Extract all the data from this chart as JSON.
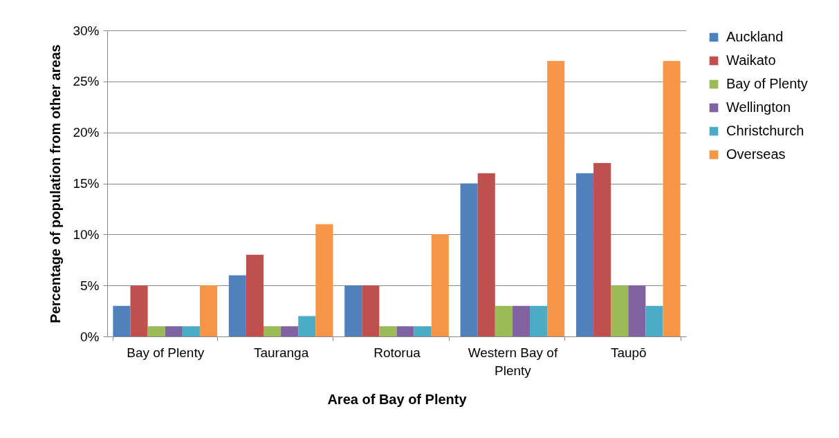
{
  "chart_data": {
    "type": "bar",
    "xlabel": "Area of Bay of Plenty",
    "ylabel": "Percentage of population from other areas",
    "categories": [
      "Bay of Plenty",
      "Tauranga",
      "Rotorua",
      "Western Bay of Plenty",
      "Taupō"
    ],
    "series": [
      {
        "name": "Auckland",
        "color": "#4f81bd",
        "values": [
          3,
          6,
          5,
          15,
          16
        ]
      },
      {
        "name": "Waikato",
        "color": "#c0504d",
        "values": [
          5,
          8,
          5,
          16,
          17
        ]
      },
      {
        "name": "Bay of Plenty",
        "color": "#9bbb59",
        "values": [
          1,
          1,
          1,
          3,
          5
        ]
      },
      {
        "name": "Wellington",
        "color": "#8064a2",
        "values": [
          1,
          1,
          1,
          3,
          5
        ]
      },
      {
        "name": "Christchurch",
        "color": "#4bacc6",
        "values": [
          1,
          2,
          1,
          3,
          3
        ]
      },
      {
        "name": "Overseas",
        "color": "#f79646",
        "values": [
          5,
          11,
          10,
          27,
          27
        ]
      }
    ],
    "ylim": [
      0,
      30
    ],
    "yticks": [
      {
        "value": 0,
        "label": "0%"
      },
      {
        "value": 5,
        "label": "5%"
      },
      {
        "value": 10,
        "label": "10%"
      },
      {
        "value": 15,
        "label": "15%"
      },
      {
        "value": 20,
        "label": "20%"
      },
      {
        "value": 25,
        "label": "25%"
      },
      {
        "value": 30,
        "label": "30%"
      }
    ],
    "grid": "y",
    "legend": "right"
  }
}
